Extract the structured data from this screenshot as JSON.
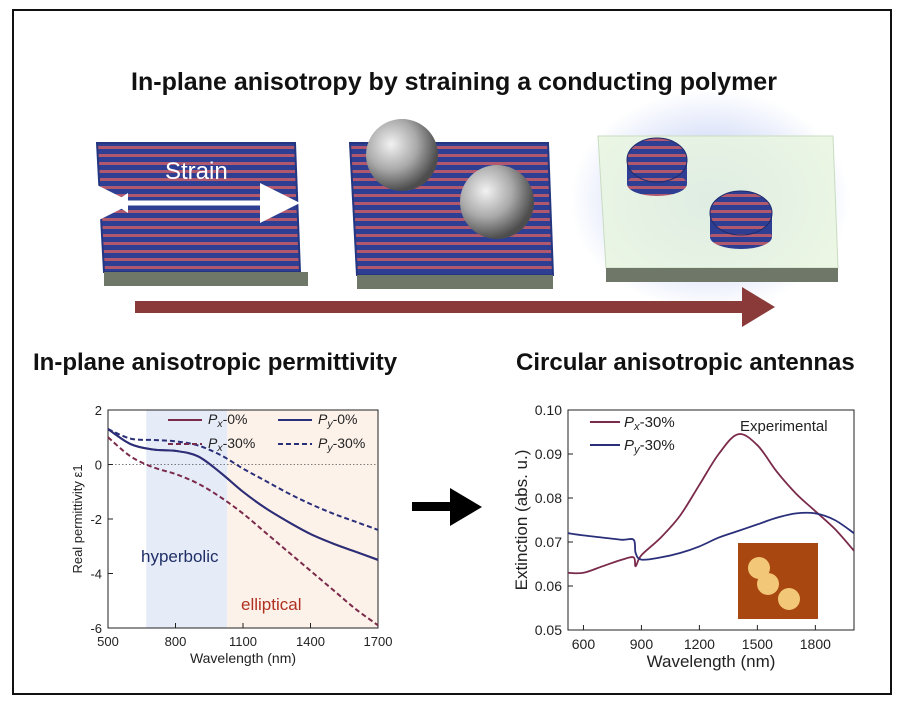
{
  "figure": {
    "main_title": "In-plane anisotropy by straining a conducting polymer",
    "strain_label": "Strain",
    "left_section_title": "In-plane anisotropic permittivity",
    "right_section_title": "Circular anisotropic antennas"
  },
  "colors": {
    "film_blue": "#2e3f93",
    "stripe_red": "#b0586d",
    "arrow_maroon": "#8b3a3a",
    "px_line": "#7a2a4a",
    "py_line": "#2a2f7a",
    "hyperbolic_shade": "#e6ebf8",
    "elliptical_shade": "#fdf2ea",
    "hyperbolic_text": "#1f2f66",
    "elliptical_text": "#b03020"
  },
  "chart_data": [
    {
      "type": "line",
      "xlabel": "Wavelength (nm)",
      "ylabel": "Real permittivity ε1",
      "xlim": [
        500,
        1700
      ],
      "ylim": [
        -6,
        2
      ],
      "xticks": [
        500,
        800,
        1100,
        1400,
        1700
      ],
      "yticks": [
        2,
        0,
        -2,
        -4,
        -6
      ],
      "regions": [
        {
          "label": "hyperbolic",
          "x": [
            670,
            1030
          ]
        },
        {
          "label": "elliptical",
          "x": [
            1030,
            1700
          ]
        }
      ],
      "x": [
        500,
        600,
        700,
        800,
        900,
        1000,
        1100,
        1200,
        1300,
        1400,
        1500,
        1600,
        1700
      ],
      "series": [
        {
          "name": "Px-0%",
          "style": "solid",
          "values": [
            1.3,
            0.75,
            0.55,
            0.5,
            0.3,
            -0.3,
            -1.0,
            -1.6,
            -2.1,
            -2.55,
            -2.9,
            -3.2,
            -3.5
          ]
        },
        {
          "name": "Py-0%",
          "style": "solid",
          "values": [
            1.3,
            0.75,
            0.55,
            0.5,
            0.3,
            -0.3,
            -1.0,
            -1.6,
            -2.1,
            -2.55,
            -2.9,
            -3.2,
            -3.5
          ]
        },
        {
          "name": "Px-30%",
          "style": "dashed",
          "values": [
            1.0,
            0.3,
            -0.1,
            -0.35,
            -0.7,
            -1.2,
            -1.8,
            -2.5,
            -3.2,
            -3.9,
            -4.6,
            -5.3,
            -5.9
          ]
        },
        {
          "name": "Py-30%",
          "style": "dashed",
          "values": [
            1.3,
            0.95,
            0.9,
            0.85,
            0.7,
            0.35,
            -0.15,
            -0.6,
            -1.05,
            -1.45,
            -1.8,
            -2.1,
            -2.4
          ]
        }
      ],
      "legend": "top"
    },
    {
      "type": "line",
      "annotation": "Experimental",
      "xlabel": "Wavelength (nm)",
      "ylabel": "Extinction (abs. u.)",
      "xlim": [
        520,
        2000
      ],
      "ylim": [
        0.05,
        0.1
      ],
      "xticks": [
        600,
        900,
        1200,
        1500,
        1800
      ],
      "yticks": [
        0.1,
        0.09,
        0.08,
        0.07,
        0.06,
        0.05
      ],
      "x": [
        520,
        600,
        700,
        800,
        860,
        870,
        900,
        1000,
        1100,
        1200,
        1300,
        1400,
        1500,
        1600,
        1700,
        1800,
        1900,
        2000
      ],
      "series": [
        {
          "name": "Px-30%",
          "values": [
            0.063,
            0.063,
            0.0645,
            0.066,
            0.0665,
            0.0645,
            0.067,
            0.071,
            0.076,
            0.083,
            0.09,
            0.0945,
            0.092,
            0.086,
            0.081,
            0.077,
            0.073,
            0.068
          ]
        },
        {
          "name": "Py-30%",
          "values": [
            0.072,
            0.0715,
            0.071,
            0.0705,
            0.0705,
            0.0675,
            0.066,
            0.0665,
            0.0675,
            0.069,
            0.071,
            0.0725,
            0.074,
            0.0755,
            0.0765,
            0.0765,
            0.075,
            0.072
          ]
        }
      ],
      "legend": "top-left"
    }
  ]
}
